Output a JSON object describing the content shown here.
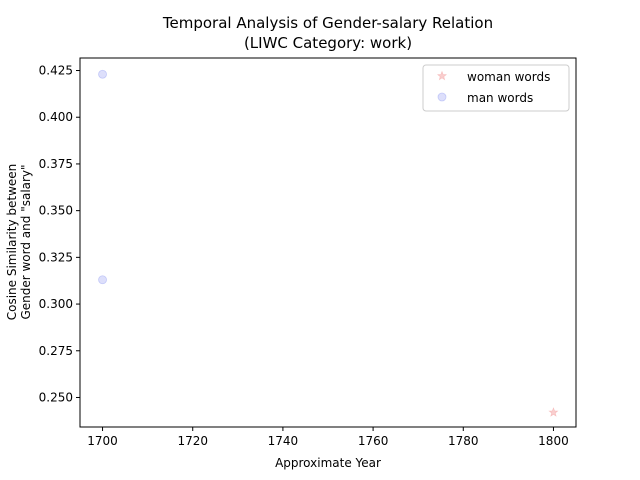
{
  "chart_data": {
    "type": "scatter",
    "title": "Temporal Analysis of Gender-salary Relation",
    "subtitle": "(LIWC Category: work)",
    "xlabel": "Approximate Year",
    "ylabel_line1": "Cosine Similarity between",
    "ylabel_line2": "Gender word and \"salary\"",
    "xlim": [
      1695,
      1805
    ],
    "ylim": [
      0.2342,
      0.4317
    ],
    "xticks": [
      1700,
      1720,
      1740,
      1760,
      1780,
      1800
    ],
    "yticks": [
      0.25,
      0.275,
      0.3,
      0.325,
      0.35,
      0.375,
      0.4,
      0.425
    ],
    "ytick_labels": [
      "0.250",
      "0.275",
      "0.300",
      "0.325",
      "0.350",
      "0.375",
      "0.400",
      "0.425"
    ],
    "grid": false,
    "legend_position": "top-right",
    "series": [
      {
        "name": "woman words",
        "marker": "star",
        "color": "#f4a6a6",
        "points": [
          {
            "x": 1800,
            "y": 0.242
          }
        ]
      },
      {
        "name": "man words",
        "marker": "circle",
        "color": "#a9b0f5",
        "points": [
          {
            "x": 1700,
            "y": 0.423
          },
          {
            "x": 1700,
            "y": 0.313
          }
        ]
      }
    ]
  }
}
